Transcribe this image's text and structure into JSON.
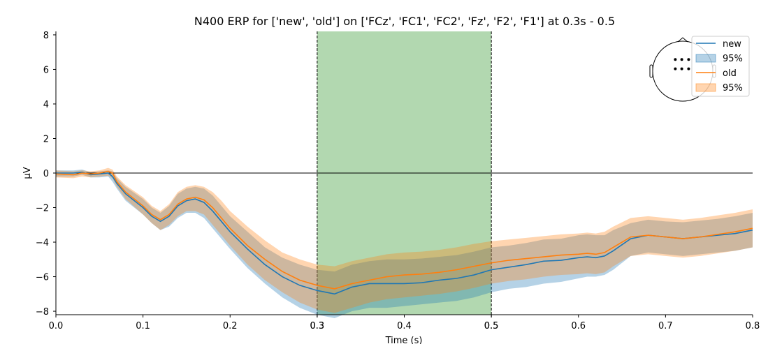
{
  "chart_data": {
    "type": "line",
    "title": "N400 ERP for ['new', 'old'] on ['FCz', 'FC1', 'FC2', 'Fz', 'F2', 'F1'] at 0.3s - 0.5",
    "xlabel": "Time (s)",
    "ylabel": "µV",
    "xlim": [
      0.0,
      0.8
    ],
    "ylim": [
      -8.2,
      8.2
    ],
    "xticks": [
      "0.0",
      "0.1",
      "0.2",
      "0.3",
      "0.3",
      "0.4",
      "0.5",
      "0.5",
      "0.6",
      "0.7",
      "0.8"
    ],
    "xtick_values": [
      0.0,
      0.1,
      0.2,
      0.3,
      0.3,
      0.4,
      0.5,
      0.5,
      0.6,
      0.7,
      0.8
    ],
    "yticks": [
      "−8",
      "−6",
      "−4",
      "−2",
      "0",
      "2",
      "4",
      "6",
      "8"
    ],
    "ytick_values": [
      -8,
      -6,
      -4,
      -2,
      0,
      2,
      4,
      6,
      8
    ],
    "highlight_window": [
      0.3,
      0.5
    ],
    "highlight_color": "#b2d8b0",
    "grid": false,
    "legend_position": "top-right",
    "legend": [
      {
        "label": "new",
        "kind": "line",
        "color": "#1f77b4"
      },
      {
        "label": "95%",
        "kind": "band",
        "color": "#1f77b4"
      },
      {
        "label": "old",
        "kind": "line",
        "color": "#ff7f0e"
      },
      {
        "label": "95%",
        "kind": "band",
        "color": "#ff7f0e"
      }
    ],
    "x": [
      0.0,
      0.02,
      0.03,
      0.04,
      0.05,
      0.06,
      0.065,
      0.07,
      0.08,
      0.1,
      0.11,
      0.12,
      0.13,
      0.14,
      0.15,
      0.16,
      0.17,
      0.18,
      0.19,
      0.2,
      0.22,
      0.24,
      0.26,
      0.28,
      0.3,
      0.32,
      0.34,
      0.36,
      0.38,
      0.4,
      0.42,
      0.44,
      0.46,
      0.48,
      0.5,
      0.52,
      0.54,
      0.56,
      0.58,
      0.6,
      0.61,
      0.62,
      0.63,
      0.64,
      0.66,
      0.68,
      0.7,
      0.72,
      0.74,
      0.76,
      0.78,
      0.8
    ],
    "series": [
      {
        "name": "new",
        "color": "#1f77b4",
        "values": [
          0.0,
          0.0,
          0.05,
          -0.1,
          -0.05,
          0.0,
          -0.2,
          -0.6,
          -1.2,
          -2.0,
          -2.5,
          -2.8,
          -2.5,
          -1.9,
          -1.6,
          -1.5,
          -1.7,
          -2.2,
          -2.8,
          -3.4,
          -4.4,
          -5.3,
          -6.0,
          -6.5,
          -6.8,
          -7.0,
          -6.6,
          -6.4,
          -6.4,
          -6.4,
          -6.35,
          -6.2,
          -6.1,
          -5.9,
          -5.6,
          -5.45,
          -5.3,
          -5.1,
          -5.05,
          -4.9,
          -4.85,
          -4.9,
          -4.8,
          -4.5,
          -3.8,
          -3.6,
          -3.7,
          -3.8,
          -3.7,
          -3.6,
          -3.5,
          -3.3
        ],
        "lower": [
          -0.2,
          -0.2,
          -0.1,
          -0.25,
          -0.25,
          -0.2,
          -0.5,
          -0.9,
          -1.6,
          -2.4,
          -2.9,
          -3.3,
          -3.1,
          -2.6,
          -2.3,
          -2.3,
          -2.6,
          -3.2,
          -3.8,
          -4.4,
          -5.5,
          -6.4,
          -7.2,
          -7.8,
          -8.2,
          -8.4,
          -8.0,
          -7.8,
          -7.8,
          -7.7,
          -7.6,
          -7.5,
          -7.4,
          -7.2,
          -6.9,
          -6.7,
          -6.6,
          -6.4,
          -6.3,
          -6.1,
          -6.0,
          -6.0,
          -5.9,
          -5.6,
          -4.8,
          -4.6,
          -4.7,
          -4.8,
          -4.7,
          -4.6,
          -4.5,
          -4.3
        ],
        "upper": [
          0.15,
          0.15,
          0.2,
          0.05,
          0.1,
          0.15,
          0.1,
          -0.3,
          -0.8,
          -1.5,
          -2.0,
          -2.3,
          -1.9,
          -1.2,
          -0.9,
          -0.8,
          -0.9,
          -1.3,
          -1.9,
          -2.5,
          -3.4,
          -4.3,
          -4.9,
          -5.3,
          -5.6,
          -5.7,
          -5.3,
          -5.1,
          -5.0,
          -5.0,
          -4.95,
          -4.85,
          -4.75,
          -4.55,
          -4.3,
          -4.2,
          -4.05,
          -3.85,
          -3.8,
          -3.6,
          -3.55,
          -3.6,
          -3.6,
          -3.3,
          -2.9,
          -2.7,
          -2.8,
          -2.85,
          -2.75,
          -2.65,
          -2.5,
          -2.3
        ]
      },
      {
        "name": "old",
        "color": "#ff7f0e",
        "values": [
          -0.05,
          -0.1,
          0.0,
          -0.05,
          0.0,
          0.1,
          0.0,
          -0.5,
          -1.1,
          -1.9,
          -2.4,
          -2.7,
          -2.4,
          -1.8,
          -1.5,
          -1.4,
          -1.55,
          -2.0,
          -2.6,
          -3.2,
          -4.2,
          -5.0,
          -5.7,
          -6.2,
          -6.5,
          -6.7,
          -6.4,
          -6.2,
          -6.0,
          -5.9,
          -5.85,
          -5.75,
          -5.6,
          -5.4,
          -5.2,
          -5.05,
          -4.95,
          -4.85,
          -4.75,
          -4.7,
          -4.65,
          -4.7,
          -4.6,
          -4.3,
          -3.7,
          -3.6,
          -3.7,
          -3.8,
          -3.7,
          -3.55,
          -3.4,
          -3.2
        ],
        "lower": [
          -0.25,
          -0.3,
          -0.2,
          -0.25,
          -0.2,
          -0.15,
          -0.3,
          -0.8,
          -1.5,
          -2.4,
          -2.9,
          -3.3,
          -3.0,
          -2.5,
          -2.2,
          -2.2,
          -2.4,
          -3.0,
          -3.6,
          -4.2,
          -5.3,
          -6.2,
          -6.9,
          -7.5,
          -7.9,
          -8.1,
          -7.8,
          -7.5,
          -7.3,
          -7.2,
          -7.1,
          -7.0,
          -6.85,
          -6.65,
          -6.4,
          -6.25,
          -6.15,
          -6.0,
          -5.9,
          -5.85,
          -5.8,
          -5.85,
          -5.75,
          -5.4,
          -4.8,
          -4.7,
          -4.8,
          -4.9,
          -4.8,
          -4.65,
          -4.5,
          -4.3
        ],
        "upper": [
          0.15,
          0.1,
          0.15,
          0.1,
          0.15,
          0.3,
          0.2,
          -0.2,
          -0.7,
          -1.4,
          -1.9,
          -2.2,
          -1.8,
          -1.1,
          -0.8,
          -0.7,
          -0.8,
          -1.1,
          -1.6,
          -2.2,
          -3.1,
          -3.9,
          -4.6,
          -5.0,
          -5.3,
          -5.4,
          -5.1,
          -4.9,
          -4.7,
          -4.6,
          -4.55,
          -4.45,
          -4.3,
          -4.1,
          -3.95,
          -3.85,
          -3.75,
          -3.65,
          -3.55,
          -3.5,
          -3.45,
          -3.5,
          -3.4,
          -3.1,
          -2.6,
          -2.5,
          -2.6,
          -2.7,
          -2.6,
          -2.45,
          -2.3,
          -2.1
        ]
      }
    ],
    "sensor_positions": [
      [
        -0.38,
        -0.6
      ],
      [
        -0.05,
        -0.6
      ],
      [
        0.3,
        -0.6
      ],
      [
        -0.38,
        -0.12
      ],
      [
        -0.05,
        -0.12
      ],
      [
        0.3,
        -0.12
      ]
    ]
  }
}
